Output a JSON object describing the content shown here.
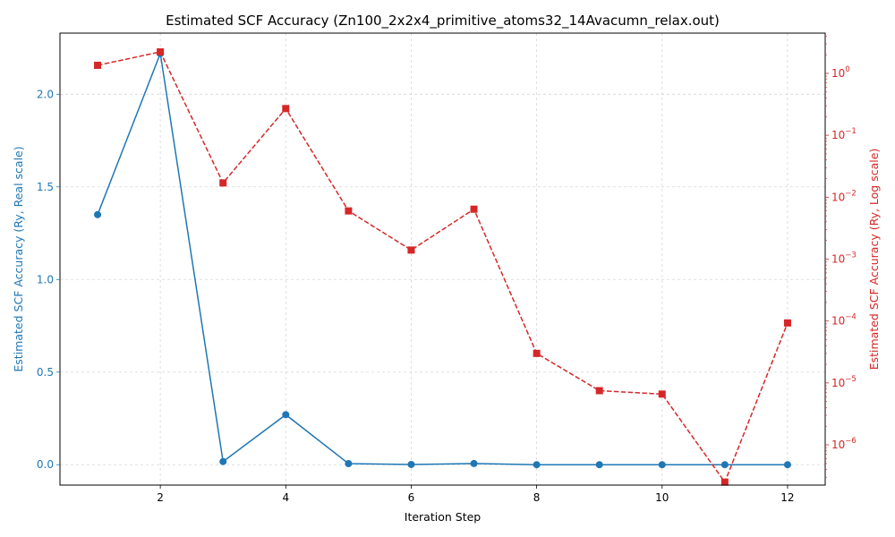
{
  "chart_data": {
    "type": "line",
    "title": "Estimated SCF Accuracy (Zn100_2x2x4_primitive_atoms32_14Avacumn_relax.out)",
    "xlabel": "Iteration Step",
    "ylabel_left": "Estimated SCF Accuracy (Ry, Real scale)",
    "ylabel_right": "Estimated SCF Accuracy (Ry, Log scale)",
    "x": [
      1,
      2,
      3,
      4,
      5,
      6,
      7,
      8,
      9,
      10,
      11,
      12
    ],
    "xlim": [
      0.4,
      12.6
    ],
    "ylim_left": [
      -0.11,
      2.33
    ],
    "ylim_right_log10": [
      -6.65,
      0.65
    ],
    "x_ticks": [
      2,
      4,
      6,
      8,
      10,
      12
    ],
    "x_tick_labels": [
      "2",
      "4",
      "6",
      "8",
      "10",
      "12"
    ],
    "y_left_ticks": [
      0.0,
      0.5,
      1.0,
      1.5,
      2.0
    ],
    "y_left_tick_labels": [
      "0.0",
      "0.5",
      "1.0",
      "1.5",
      "2.0"
    ],
    "y_right_ticks_exponent": [
      -6,
      -5,
      -4,
      -3,
      -2,
      -1,
      0
    ],
    "y_right_tick_labels": [
      "10",
      "10",
      "10",
      "10",
      "10",
      "10",
      "10"
    ],
    "y_right_tick_label_exponents": [
      "−6",
      "−5",
      "−4",
      "−3",
      "−2",
      "−1",
      "0"
    ],
    "grid": true,
    "series": [
      {
        "axis": "left",
        "scale": "linear",
        "color": "#1f77b4",
        "marker": "circle",
        "linestyle": "solid",
        "values": [
          1.35,
          2.22,
          0.017,
          0.27,
          0.006,
          0.0014,
          0.0064,
          3e-05,
          7.5e-06,
          6.6e-06,
          2.5e-07,
          9.3e-05
        ]
      },
      {
        "axis": "right",
        "scale": "log",
        "color": "#d62728",
        "marker": "square",
        "linestyle": "dashed",
        "values": [
          1.35,
          2.22,
          0.017,
          0.27,
          0.006,
          0.0014,
          0.0064,
          3e-05,
          7.5e-06,
          6.6e-06,
          2.5e-07,
          9.3e-05
        ]
      }
    ]
  }
}
